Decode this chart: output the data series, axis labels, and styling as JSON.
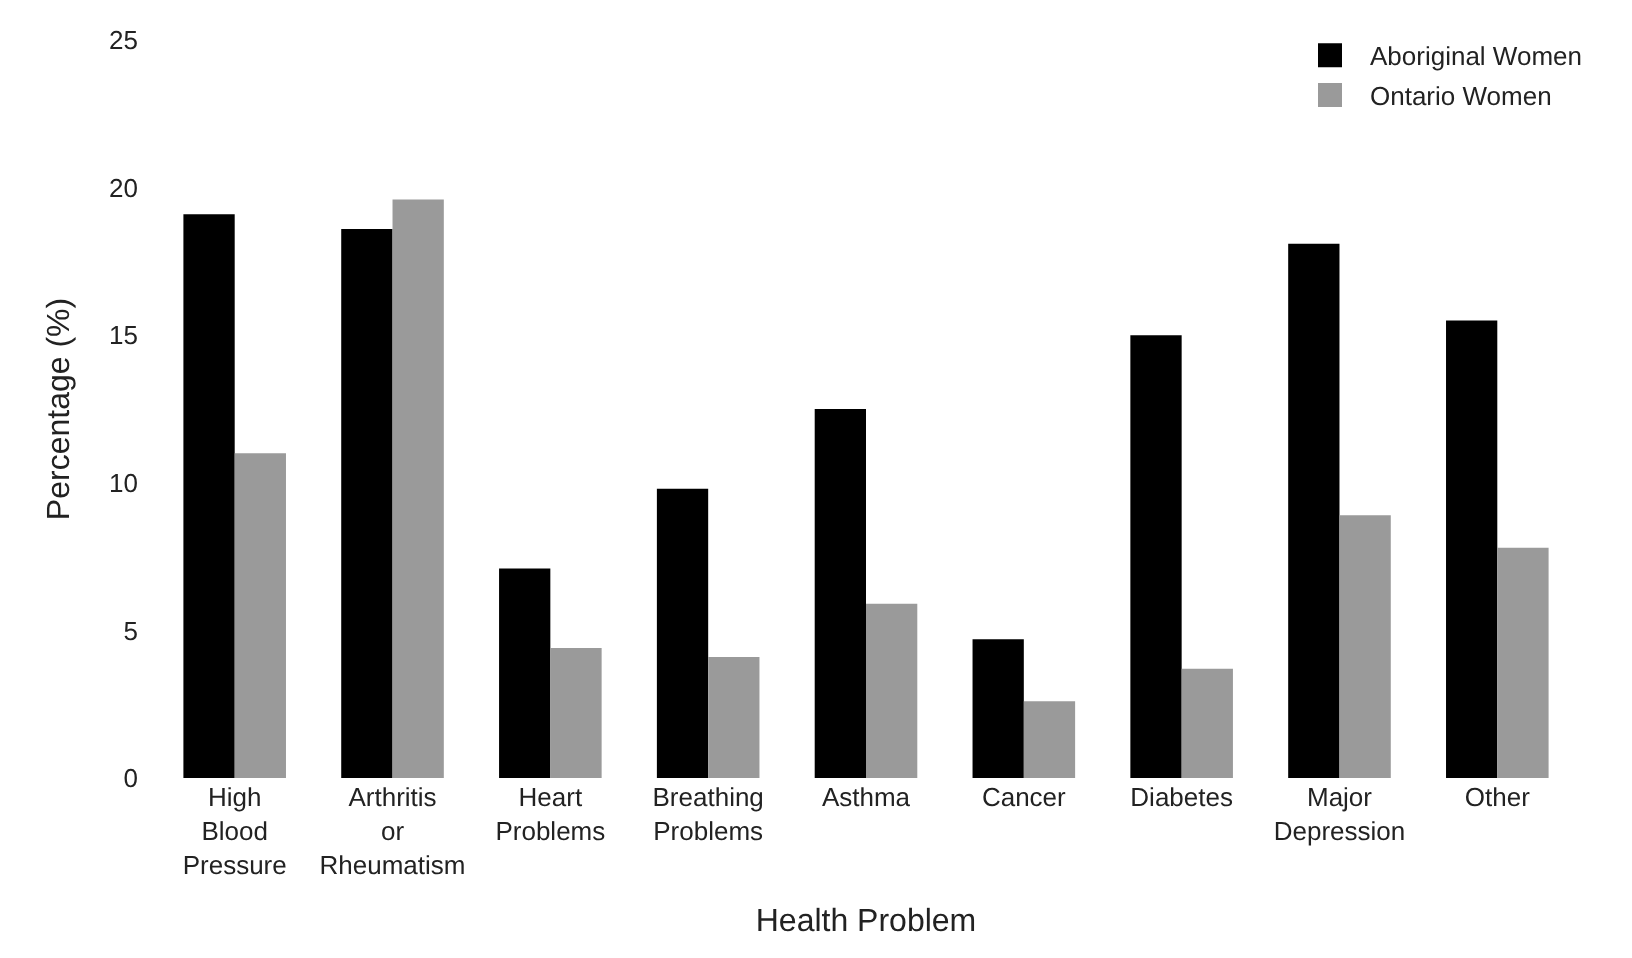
{
  "chart_data": {
    "type": "bar",
    "xlabel": "Health Problem",
    "ylabel": "Percentage (%)",
    "categories": [
      "High Blood Pressure",
      "Arthritis or Rheumatism",
      "Heart Problems",
      "Breathing Problems",
      "Asthma",
      "Cancer",
      "Diabetes",
      "Major Depression",
      "Other"
    ],
    "series": [
      {
        "name": "Aboriginal Women",
        "color": "#000000",
        "values": [
          19.1,
          18.6,
          7.1,
          9.8,
          12.5,
          4.7,
          15.0,
          18.1,
          15.5
        ]
      },
      {
        "name": "Ontario Women",
        "color": "#9a9a9a",
        "values": [
          11.0,
          19.6,
          4.4,
          4.1,
          5.9,
          2.6,
          3.7,
          8.9,
          7.8
        ]
      }
    ],
    "ylim": [
      0,
      25
    ],
    "yticks": [
      0,
      5,
      10,
      15,
      20,
      25
    ],
    "legend": "top right"
  }
}
